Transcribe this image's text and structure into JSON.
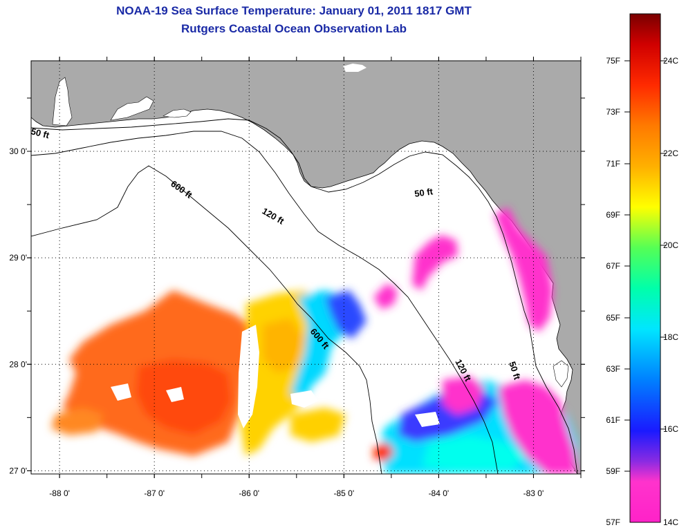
{
  "title": {
    "line1": "NOAA-19 Sea Surface Temperature:  January 01, 2011 1817 GMT",
    "line2": "Rutgers Coastal Ocean Observation Lab"
  },
  "map": {
    "lon_range": [
      -88.3,
      -82.5
    ],
    "lat_range": [
      26.97,
      30.85
    ],
    "lon_ticks": [
      {
        "value": -88,
        "label": "-88 0'"
      },
      {
        "value": -87,
        "label": "-87 0'"
      },
      {
        "value": -86,
        "label": "-86 0'"
      },
      {
        "value": -85,
        "label": "-85 0'"
      },
      {
        "value": -84,
        "label": "-84 0'"
      },
      {
        "value": -83,
        "label": "-83 0'"
      }
    ],
    "lat_ticks": [
      {
        "value": 30,
        "label": "30 0'"
      },
      {
        "value": 29,
        "label": "29 0'"
      },
      {
        "value": 28,
        "label": "28 0'"
      },
      {
        "value": 27,
        "label": "27 0'"
      }
    ],
    "contour_labels": [
      "50 ft",
      "600 ft",
      "120 ft",
      "50 ft",
      "600 ft",
      "120 ft",
      "50 ft"
    ],
    "land_color": "#aaaaaa",
    "grid": "dotted"
  },
  "colorbar": {
    "fahrenheit_labels": [
      "75F",
      "73F",
      "71F",
      "69F",
      "67F",
      "65F",
      "63F",
      "61F",
      "59F",
      "57F"
    ],
    "celsius_labels": [
      "24C",
      "22C",
      "20C",
      "18C",
      "16C",
      "14C"
    ],
    "range_celsius": [
      14,
      25
    ]
  }
}
